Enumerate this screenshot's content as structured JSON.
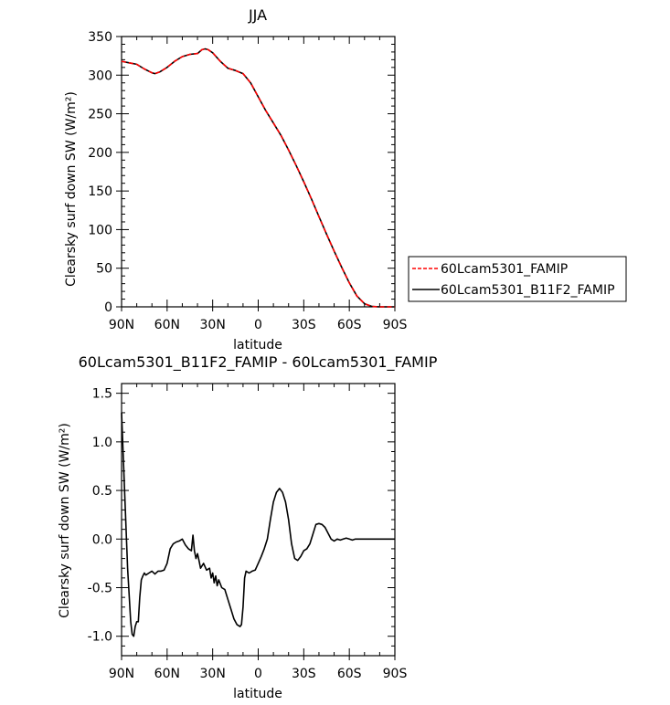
{
  "chart_data": [
    {
      "type": "line",
      "title": "JJA",
      "xlabel": "latitude",
      "ylabel": "Clearsky surf down SW (W/m²)",
      "xlim": [
        90,
        -90
      ],
      "ylim": [
        0,
        350
      ],
      "x_ticks": [
        90,
        60,
        30,
        0,
        -30,
        -60,
        -90
      ],
      "x_tick_labels": [
        "90N",
        "60N",
        "30N",
        "0",
        "30S",
        "60S",
        "90S"
      ],
      "y_ticks": [
        0,
        50,
        100,
        150,
        200,
        250,
        300,
        350
      ],
      "y_tick_labels": [
        "0",
        "50",
        "100",
        "150",
        "200",
        "250",
        "300",
        "350"
      ],
      "legend_position": "right",
      "series": [
        {
          "name": "60Lcam5301_FAMIP",
          "color": "#ff0000",
          "dash": "dashed",
          "x": [
            90,
            85,
            80,
            75,
            70,
            68,
            65,
            60,
            55,
            50,
            45,
            40,
            37,
            35,
            33,
            30,
            25,
            20,
            15,
            10,
            5,
            0,
            -5,
            -10,
            -15,
            -20,
            -25,
            -30,
            -35,
            -40,
            -45,
            -50,
            -55,
            -60,
            -65,
            -70,
            -75,
            -80,
            -85,
            -90
          ],
          "y": [
            318,
            316,
            314,
            308,
            303,
            302,
            304,
            310,
            318,
            324,
            327,
            328,
            333,
            334,
            333,
            329,
            318,
            309,
            306,
            302,
            290,
            272,
            254,
            238,
            222,
            203,
            183,
            162,
            140,
            117,
            94,
            72,
            51,
            31,
            14,
            4,
            0.5,
            0,
            0,
            0
          ]
        },
        {
          "name": "60Lcam5301_B11F2_FAMIP",
          "color": "#000000",
          "dash": "solid",
          "x": [
            90,
            85,
            80,
            75,
            70,
            68,
            65,
            60,
            55,
            50,
            45,
            40,
            37,
            35,
            33,
            30,
            25,
            20,
            15,
            10,
            5,
            0,
            -5,
            -10,
            -15,
            -20,
            -25,
            -30,
            -35,
            -40,
            -45,
            -50,
            -55,
            -60,
            -65,
            -70,
            -75,
            -80,
            -85,
            -90
          ],
          "y": [
            318,
            316,
            314,
            308,
            303,
            302,
            304,
            310,
            318,
            324,
            327,
            328,
            333,
            334,
            333,
            329,
            318,
            309,
            306,
            302,
            290,
            272,
            254,
            238,
            222,
            203,
            183,
            162,
            140,
            117,
            94,
            72,
            51,
            31,
            14,
            4,
            0.5,
            0,
            0,
            0
          ]
        }
      ]
    },
    {
      "type": "line",
      "title": "60Lcam5301_B11F2_FAMIP - 60Lcam5301_FAMIP",
      "xlabel": "latitude",
      "ylabel": "Clearsky surf down SW (W/m²)",
      "xlim": [
        90,
        -90
      ],
      "ylim": [
        -1.2,
        1.6
      ],
      "x_ticks": [
        90,
        60,
        30,
        0,
        -30,
        -60,
        -90
      ],
      "x_tick_labels": [
        "90N",
        "60N",
        "30N",
        "0",
        "30S",
        "60S",
        "90S"
      ],
      "y_ticks": [
        -1.0,
        -0.5,
        0.0,
        0.5,
        1.0,
        1.5
      ],
      "y_tick_labels": [
        "-1.0",
        "-0.5",
        "0.0",
        "0.5",
        "1.0",
        "1.5"
      ],
      "series": [
        {
          "name": "",
          "color": "#000000",
          "dash": "solid",
          "x": [
            90,
            88,
            86,
            84,
            83,
            82,
            81,
            80,
            79,
            78,
            77,
            76,
            75,
            74,
            72,
            70,
            68,
            66,
            64,
            62,
            60,
            58,
            56,
            54,
            52,
            50,
            48,
            46,
            44,
            43,
            42,
            41,
            40,
            39,
            38,
            36,
            34,
            32,
            31,
            30,
            29,
            28,
            27,
            26,
            24,
            22,
            20,
            18,
            16,
            14,
            12,
            11,
            10,
            9,
            8,
            6,
            4,
            2,
            0,
            -2,
            -4,
            -6,
            -8,
            -10,
            -12,
            -14,
            -16,
            -18,
            -20,
            -22,
            -24,
            -26,
            -28,
            -30,
            -32,
            -34,
            -36,
            -38,
            -40,
            -42,
            -44,
            -46,
            -48,
            -50,
            -52,
            -54,
            -56,
            -58,
            -60,
            -62,
            -64,
            -66,
            -68,
            -70,
            -75,
            -80,
            -85,
            -90
          ],
          "y": [
            1.3,
            0.5,
            -0.3,
            -0.85,
            -0.98,
            -1.0,
            -0.9,
            -0.85,
            -0.85,
            -0.6,
            -0.42,
            -0.38,
            -0.35,
            -0.37,
            -0.35,
            -0.33,
            -0.36,
            -0.33,
            -0.33,
            -0.32,
            -0.25,
            -0.1,
            -0.05,
            -0.03,
            -0.02,
            0.0,
            -0.06,
            -0.1,
            -0.12,
            0.04,
            -0.12,
            -0.2,
            -0.15,
            -0.22,
            -0.3,
            -0.25,
            -0.32,
            -0.3,
            -0.4,
            -0.35,
            -0.45,
            -0.38,
            -0.48,
            -0.42,
            -0.5,
            -0.52,
            -0.62,
            -0.72,
            -0.82,
            -0.88,
            -0.9,
            -0.88,
            -0.7,
            -0.4,
            -0.33,
            -0.35,
            -0.33,
            -0.32,
            -0.25,
            -0.18,
            -0.1,
            0.0,
            0.2,
            0.38,
            0.48,
            0.52,
            0.48,
            0.38,
            0.2,
            -0.05,
            -0.2,
            -0.22,
            -0.18,
            -0.12,
            -0.1,
            -0.05,
            0.05,
            0.15,
            0.16,
            0.15,
            0.12,
            0.06,
            0.0,
            -0.02,
            0.0,
            -0.01,
            0.0,
            0.01,
            0.0,
            -0.01,
            0.0,
            0.0,
            0.0,
            0.0,
            0.0,
            0.0,
            0.0,
            0.0
          ]
        }
      ]
    }
  ]
}
